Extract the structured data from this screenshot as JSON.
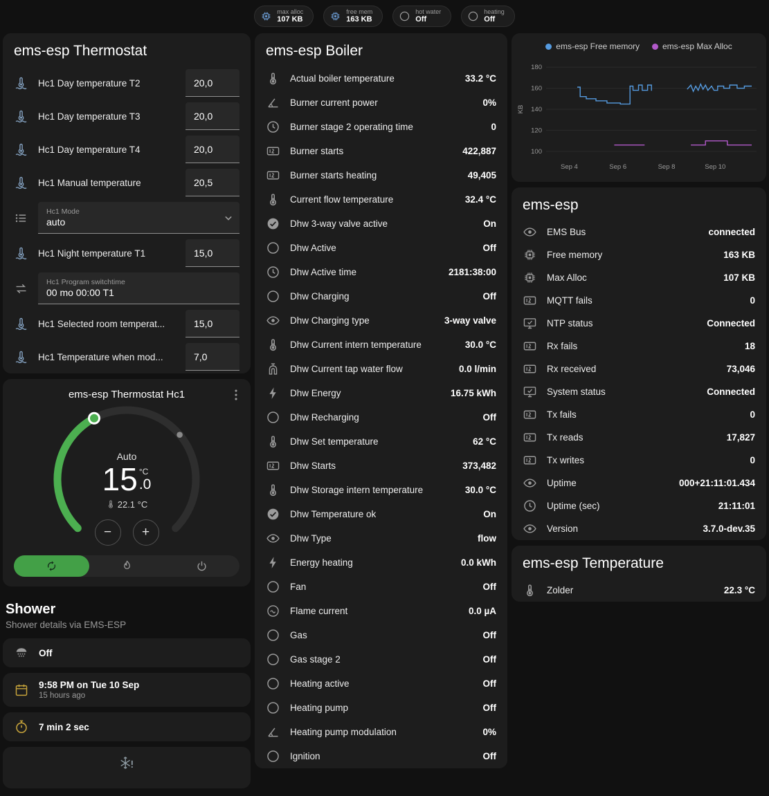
{
  "header": {
    "badges": [
      {
        "id": "max-alloc",
        "icon": "chip",
        "icon_color": "#6b9bd2",
        "label": "max alloc",
        "value": "107 KB"
      },
      {
        "id": "free-mem",
        "icon": "chip",
        "icon_color": "#6b9bd2",
        "label": "free mem",
        "value": "163 KB"
      },
      {
        "id": "hot-water",
        "icon": "circle-outline",
        "icon_color": "#9b9b9b",
        "label": "hot water",
        "value": "Off"
      },
      {
        "id": "heating",
        "icon": "circle-outline",
        "icon_color": "#9b9b9b",
        "label": "heating",
        "value": "Off"
      }
    ]
  },
  "thermostat_card": {
    "title": "ems-esp Thermostat",
    "rows": [
      {
        "type": "number",
        "icon": "thermometer-water",
        "icon_color": "#85a3c2",
        "name": "Hc1 Day temperature T2",
        "value": "20,0"
      },
      {
        "type": "number",
        "icon": "thermometer-water",
        "icon_color": "#85a3c2",
        "name": "Hc1 Day temperature T3",
        "value": "20,0"
      },
      {
        "type": "number",
        "icon": "thermometer-water",
        "icon_color": "#85a3c2",
        "name": "Hc1 Day temperature T4",
        "value": "20,0"
      },
      {
        "type": "number",
        "icon": "thermometer-water",
        "icon_color": "#85a3c2",
        "name": "Hc1 Manual temperature",
        "value": "20,5"
      },
      {
        "type": "select",
        "icon": "format-list",
        "icon_color": "#9b9b9b",
        "name": "Hc1 Mode",
        "value": "auto"
      },
      {
        "type": "number",
        "icon": "thermometer-water",
        "icon_color": "#85a3c2",
        "name": "Hc1 Night temperature T1",
        "value": "15,0"
      },
      {
        "type": "text",
        "icon": "swap-horizontal",
        "icon_color": "#9b9b9b",
        "name": "Hc1 Program switchtime",
        "value": "00 mo 00:00 T1"
      },
      {
        "type": "number",
        "icon": "thermometer-water",
        "icon_color": "#85a3c2",
        "name": "Hc1 Selected room temperat...",
        "value": "15,0"
      },
      {
        "type": "number",
        "icon": "thermometer-water",
        "icon_color": "#85a3c2",
        "name": "Hc1 Temperature when mod...",
        "value": "7,0"
      }
    ]
  },
  "hc1_card": {
    "title": "ems-esp Thermostat Hc1",
    "mode_label": "Auto",
    "temp_int": "15",
    "temp_dec": ".0",
    "temp_unit": "°C",
    "current_temp": "22.1 °C",
    "accent_color": "#4caf50",
    "active_button_color": "#43a047",
    "modes": [
      {
        "id": "auto",
        "icon": "autorenew",
        "active": true
      },
      {
        "id": "heat",
        "icon": "flame",
        "active": false
      },
      {
        "id": "off",
        "icon": "power",
        "active": false
      }
    ]
  },
  "shower": {
    "title": "Shower",
    "subtitle": "Shower details via EMS-ESP",
    "cards": [
      {
        "id": "shower-state",
        "icon": "shower-head",
        "icon_color": "#9b9b9b",
        "text": "Off",
        "subtext": ""
      },
      {
        "id": "shower-timestamp",
        "icon": "calendar",
        "icon_color": "#c7a43b",
        "text": "9:58 PM on Tue 10 Sep",
        "subtext": "15 hours ago"
      },
      {
        "id": "shower-duration",
        "icon": "timer",
        "icon_color": "#c7a43b",
        "text": "7 min 2 sec",
        "subtext": ""
      },
      {
        "id": "shower-alert",
        "icon": "snowflake-alert",
        "icon_color": "#8e9ba3",
        "text": "",
        "subtext": "",
        "center": true
      }
    ]
  },
  "boiler_card": {
    "title": "ems-esp Boiler",
    "rows": [
      {
        "icon": "thermometer",
        "name": "Actual boiler temperature",
        "value": "33.2 °C"
      },
      {
        "icon": "angle",
        "name": "Burner current power",
        "value": "0%"
      },
      {
        "icon": "clock",
        "name": "Burner stage 2 operating time",
        "value": "0"
      },
      {
        "icon": "counter",
        "name": "Burner starts",
        "value": "422,887"
      },
      {
        "icon": "counter",
        "name": "Burner starts heating",
        "value": "49,405"
      },
      {
        "icon": "thermometer",
        "name": "Current flow temperature",
        "value": "32.4 °C"
      },
      {
        "icon": "check-circle",
        "name": "Dhw 3-way valve active",
        "value": "On"
      },
      {
        "icon": "circle-outline",
        "name": "Dhw Active",
        "value": "Off"
      },
      {
        "icon": "clock",
        "name": "Dhw Active time",
        "value": "2181:38:00"
      },
      {
        "icon": "circle-outline",
        "name": "Dhw Charging",
        "value": "Off"
      },
      {
        "icon": "eye",
        "name": "Dhw Charging type",
        "value": "3-way valve"
      },
      {
        "icon": "thermometer",
        "name": "Dhw Current intern temperature",
        "value": "30.0 °C"
      },
      {
        "icon": "water-pump",
        "name": "Dhw Current tap water flow",
        "value": "0.0 l/min"
      },
      {
        "icon": "flash",
        "name": "Dhw Energy",
        "value": "16.75 kWh"
      },
      {
        "icon": "circle-outline",
        "name": "Dhw Recharging",
        "value": "Off"
      },
      {
        "icon": "thermometer",
        "name": "Dhw Set temperature",
        "value": "62 °C"
      },
      {
        "icon": "counter",
        "name": "Dhw Starts",
        "value": "373,482"
      },
      {
        "icon": "thermometer",
        "name": "Dhw Storage intern temperature",
        "value": "30.0 °C"
      },
      {
        "icon": "check-circle",
        "name": "Dhw Temperature ok",
        "value": "On"
      },
      {
        "icon": "eye",
        "name": "Dhw Type",
        "value": "flow"
      },
      {
        "icon": "flash",
        "name": "Energy heating",
        "value": "0.0 kWh"
      },
      {
        "icon": "circle-outline",
        "name": "Fan",
        "value": "Off"
      },
      {
        "icon": "current-circle",
        "name": "Flame current",
        "value": "0.0 µA"
      },
      {
        "icon": "circle-outline",
        "name": "Gas",
        "value": "Off"
      },
      {
        "icon": "circle-outline",
        "name": "Gas stage 2",
        "value": "Off"
      },
      {
        "icon": "circle-outline",
        "name": "Heating active",
        "value": "Off"
      },
      {
        "icon": "circle-outline",
        "name": "Heating pump",
        "value": "Off"
      },
      {
        "icon": "angle",
        "name": "Heating pump modulation",
        "value": "0%"
      },
      {
        "icon": "circle-outline",
        "name": "Ignition",
        "value": "Off"
      }
    ]
  },
  "chart_data": {
    "type": "line",
    "ylabel": "KB",
    "xlim": [
      3.05,
      11.7
    ],
    "ylim": [
      94,
      186
    ],
    "y_ticks": [
      100,
      120,
      140,
      160,
      180
    ],
    "x_ticks": [
      {
        "label": "Sep 4",
        "x": 4
      },
      {
        "label": "Sep 6",
        "x": 6
      },
      {
        "label": "Sep 8",
        "x": 8
      },
      {
        "label": "Sep 10",
        "x": 10
      }
    ],
    "grid": "horizontal",
    "legend_position": "top",
    "series": [
      {
        "name": "ems-esp Free memory",
        "color": "#559be0",
        "segments": [
          [
            [
              4.33,
              161
            ],
            [
              4.45,
              161
            ],
            [
              4.45,
              152
            ],
            [
              4.7,
              152
            ],
            [
              4.7,
              150
            ],
            [
              5.1,
              150
            ],
            [
              5.1,
              148
            ],
            [
              5.55,
              148
            ],
            [
              5.55,
              146
            ],
            [
              6.1,
              146
            ],
            [
              6.1,
              145
            ],
            [
              6.5,
              145
            ],
            [
              6.5,
              162
            ],
            [
              6.62,
              162
            ],
            [
              6.62,
              158
            ],
            [
              6.85,
              158
            ],
            [
              6.85,
              163
            ],
            [
              7.0,
              163
            ],
            [
              7.0,
              158
            ],
            [
              7.22,
              158
            ],
            [
              7.22,
              163
            ],
            [
              7.38,
              163
            ],
            [
              7.38,
              158
            ],
            [
              7.4,
              158
            ]
          ],
          [
            [
              8.85,
              159
            ],
            [
              9.0,
              163
            ],
            [
              9.1,
              157
            ],
            [
              9.2,
              162
            ],
            [
              9.3,
              158
            ],
            [
              9.4,
              164
            ],
            [
              9.5,
              159
            ],
            [
              9.6,
              163
            ],
            [
              9.7,
              158
            ],
            [
              9.85,
              162
            ],
            [
              9.95,
              158
            ],
            [
              10.1,
              158
            ],
            [
              10.1,
              162
            ],
            [
              10.35,
              162
            ],
            [
              10.35,
              160
            ],
            [
              10.6,
              160
            ],
            [
              10.6,
              163
            ],
            [
              10.9,
              163
            ],
            [
              10.9,
              160
            ],
            [
              11.2,
              160
            ],
            [
              11.2,
              162
            ],
            [
              11.5,
              162
            ]
          ]
        ]
      },
      {
        "name": "ems-esp Max Alloc",
        "color": "#b159c9",
        "segments": [
          [
            [
              5.85,
              106
            ],
            [
              7.1,
              106
            ]
          ],
          [
            [
              9.0,
              106
            ],
            [
              9.6,
              106
            ],
            [
              9.6,
              110
            ],
            [
              10.5,
              110
            ],
            [
              10.5,
              106
            ],
            [
              11.5,
              106
            ]
          ]
        ]
      }
    ]
  },
  "emsesp_card": {
    "title": "ems-esp",
    "rows": [
      {
        "icon": "eye",
        "name": "EMS Bus",
        "value": "connected"
      },
      {
        "icon": "chip",
        "name": "Free memory",
        "value": "163 KB"
      },
      {
        "icon": "chip",
        "name": "Max Alloc",
        "value": "107 KB"
      },
      {
        "icon": "counter",
        "name": "MQTT fails",
        "value": "0"
      },
      {
        "icon": "monitor-check",
        "name": "NTP status",
        "value": "Connected"
      },
      {
        "icon": "counter",
        "name": "Rx fails",
        "value": "18"
      },
      {
        "icon": "counter",
        "name": "Rx received",
        "value": "73,046"
      },
      {
        "icon": "monitor-check",
        "name": "System status",
        "value": "Connected"
      },
      {
        "icon": "counter",
        "name": "Tx fails",
        "value": "0"
      },
      {
        "icon": "counter",
        "name": "Tx reads",
        "value": "17,827"
      },
      {
        "icon": "counter",
        "name": "Tx writes",
        "value": "0"
      },
      {
        "icon": "eye",
        "name": "Uptime",
        "value": "000+21:11:01.434"
      },
      {
        "icon": "clock",
        "name": "Uptime (sec)",
        "value": "21:11:01"
      },
      {
        "icon": "eye",
        "name": "Version",
        "value": "3.7.0-dev.35"
      }
    ]
  },
  "temperature_card": {
    "title": "ems-esp Temperature",
    "rows": [
      {
        "icon": "thermometer",
        "name": "Zolder",
        "value": "22.3 °C"
      }
    ]
  }
}
